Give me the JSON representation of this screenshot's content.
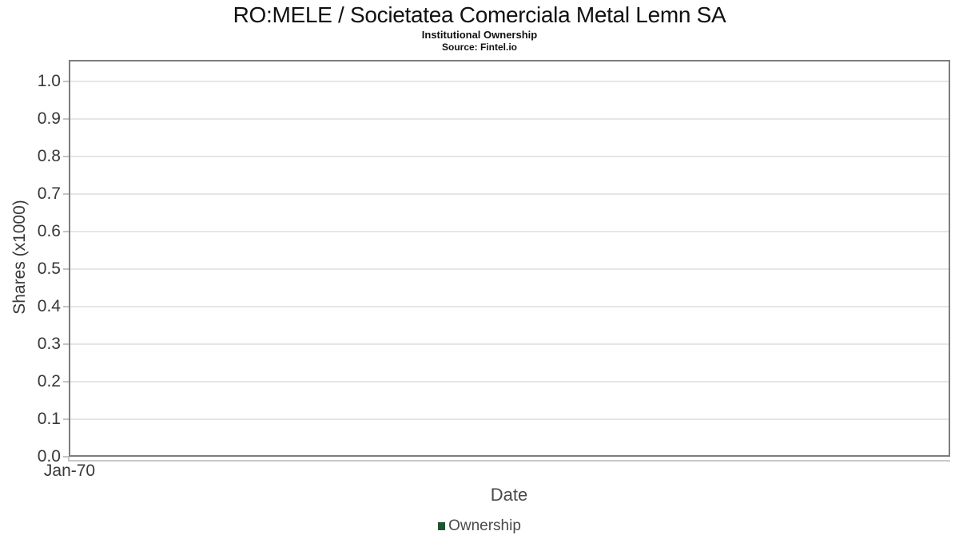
{
  "header": {
    "title": "RO:MELE / Societatea Comerciala Metal Lemn SA",
    "subtitle": "Institutional Ownership",
    "source": "Source: Fintel.io"
  },
  "axes": {
    "x_label": "Date",
    "y_label": "Shares (x1000)",
    "x_tick_labels": [
      "Jan-70"
    ],
    "y_tick_labels": [
      "0.0",
      "0.1",
      "0.2",
      "0.3",
      "0.4",
      "0.5",
      "0.6",
      "0.7",
      "0.8",
      "0.9",
      "1.0"
    ]
  },
  "legend": {
    "items": [
      {
        "label": "Ownership",
        "color": "#1e5430"
      }
    ]
  },
  "colors": {
    "plot_border": "#7d7d7d",
    "gridline": "#e6e6e6",
    "tick_mark": "#c4c4c4",
    "axis_text": "#383838",
    "label_text": "#4a4a4a",
    "series_marker": "#1e5430"
  },
  "chart_data": {
    "type": "line",
    "title": "RO:MELE / Societatea Comerciala Metal Lemn SA",
    "subtitle": "Institutional Ownership",
    "source": "Source: Fintel.io",
    "xlabel": "Date",
    "ylabel": "Shares (x1000)",
    "x_ticks": [
      "Jan-70"
    ],
    "y_ticks": [
      0.0,
      0.1,
      0.2,
      0.3,
      0.4,
      0.5,
      0.6,
      0.7,
      0.8,
      0.9,
      1.0
    ],
    "ylim": [
      0.0,
      1.05
    ],
    "grid": true,
    "legend_position": "bottom-center",
    "series": [
      {
        "name": "Ownership",
        "color": "#1e5430",
        "x": [],
        "values": []
      }
    ]
  }
}
